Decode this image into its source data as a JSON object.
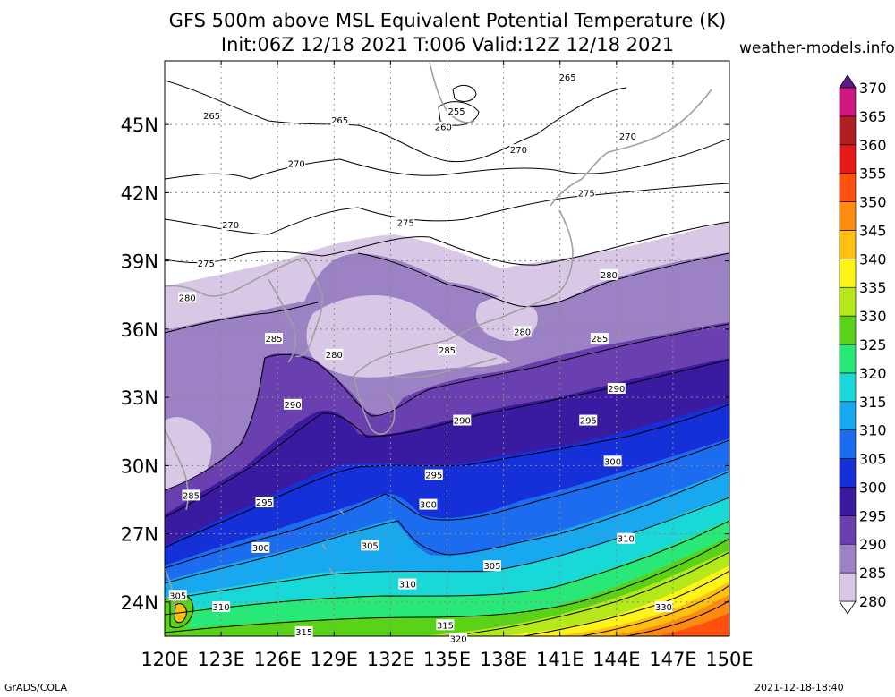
{
  "title": {
    "line1": "GFS 500m above MSL Equivalent Potential Temperature (K)",
    "line2": "Init:06Z 12/18 2021 T:006 Valid:12Z 12/18 2021",
    "site": "weather-models.info"
  },
  "footer": {
    "left": "GrADS/COLA",
    "right": "2021-12-18-18:40"
  },
  "map": {
    "lon_labels": [
      "120E",
      "123E",
      "126E",
      "129E",
      "132E",
      "135E",
      "138E",
      "141E",
      "144E",
      "147E",
      "150E"
    ],
    "lat_labels": [
      "24N",
      "27N",
      "30N",
      "33N",
      "36N",
      "39N",
      "42N",
      "45N"
    ],
    "lon_range": [
      120,
      150
    ],
    "lat_range": [
      22.5,
      47.8
    ],
    "grid": true
  },
  "colorbar": {
    "levels": [
      "280",
      "285",
      "290",
      "295",
      "300",
      "305",
      "310",
      "315",
      "320",
      "325",
      "330",
      "335",
      "340",
      "345",
      "350",
      "355",
      "360",
      "365",
      "370"
    ],
    "colors": [
      "#d8c8e6",
      "#9c82c4",
      "#6a3fb0",
      "#3b1aa2",
      "#1530d8",
      "#1c6cf0",
      "#18a8f0",
      "#18d8d8",
      "#28e878",
      "#5ad218",
      "#b4e818",
      "#fff418",
      "#ffc010",
      "#ff8a10",
      "#ff5010",
      "#e81818",
      "#b02020",
      "#d01880",
      "#e828d8",
      "#c048d8",
      "#8a3ab8",
      "#5a1a8c"
    ]
  },
  "contour_labels": [
    {
      "text": "265",
      "lon": 122.5,
      "lat": 45.4
    },
    {
      "text": "265",
      "lon": 129.3,
      "lat": 45.2
    },
    {
      "text": "255",
      "lon": 135.5,
      "lat": 45.6
    },
    {
      "text": "260",
      "lon": 134.8,
      "lat": 44.9
    },
    {
      "text": "265",
      "lon": 141.4,
      "lat": 47.1
    },
    {
      "text": "270",
      "lon": 144.6,
      "lat": 44.5
    },
    {
      "text": "270",
      "lon": 127.0,
      "lat": 43.3
    },
    {
      "text": "270",
      "lon": 138.8,
      "lat": 43.9
    },
    {
      "text": "275",
      "lon": 142.4,
      "lat": 42.0
    },
    {
      "text": "270",
      "lon": 123.5,
      "lat": 40.6
    },
    {
      "text": "275",
      "lon": 132.8,
      "lat": 40.7
    },
    {
      "text": "275",
      "lon": 122.2,
      "lat": 38.9
    },
    {
      "text": "280",
      "lon": 121.2,
      "lat": 37.4
    },
    {
      "text": "280",
      "lon": 143.6,
      "lat": 38.4
    },
    {
      "text": "285",
      "lon": 125.8,
      "lat": 35.6
    },
    {
      "text": "280",
      "lon": 129.0,
      "lat": 34.9
    },
    {
      "text": "285",
      "lon": 135.0,
      "lat": 35.1
    },
    {
      "text": "280",
      "lon": 139.0,
      "lat": 35.9
    },
    {
      "text": "285",
      "lon": 143.1,
      "lat": 35.6
    },
    {
      "text": "290",
      "lon": 126.8,
      "lat": 32.7
    },
    {
      "text": "290",
      "lon": 144.0,
      "lat": 33.4
    },
    {
      "text": "290",
      "lon": 135.8,
      "lat": 32.0
    },
    {
      "text": "295",
      "lon": 142.5,
      "lat": 32.0
    },
    {
      "text": "300",
      "lon": 143.8,
      "lat": 30.2
    },
    {
      "text": "295",
      "lon": 134.3,
      "lat": 29.6
    },
    {
      "text": "285",
      "lon": 121.4,
      "lat": 28.7
    },
    {
      "text": "295",
      "lon": 125.3,
      "lat": 28.4
    },
    {
      "text": "300",
      "lon": 134.0,
      "lat": 28.3
    },
    {
      "text": "305",
      "lon": 130.9,
      "lat": 26.5
    },
    {
      "text": "300",
      "lon": 125.1,
      "lat": 26.4
    },
    {
      "text": "305",
      "lon": 137.4,
      "lat": 25.6
    },
    {
      "text": "310",
      "lon": 144.5,
      "lat": 26.8
    },
    {
      "text": "310",
      "lon": 132.9,
      "lat": 24.8
    },
    {
      "text": "305",
      "lon": 120.7,
      "lat": 24.3
    },
    {
      "text": "310",
      "lon": 123.0,
      "lat": 23.8
    },
    {
      "text": "330",
      "lon": 146.5,
      "lat": 23.8
    },
    {
      "text": "315",
      "lon": 134.9,
      "lat": 23.0
    },
    {
      "text": "315",
      "lon": 127.4,
      "lat": 22.7
    },
    {
      "text": "320",
      "lon": 135.6,
      "lat": 22.4
    }
  ]
}
